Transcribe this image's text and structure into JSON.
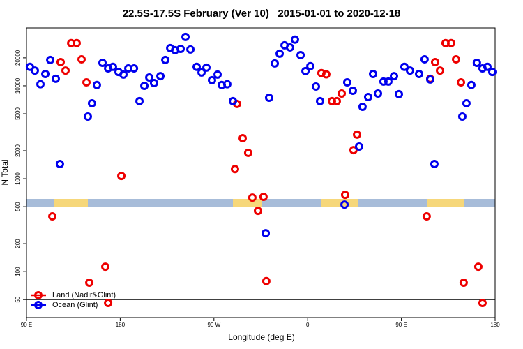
{
  "chart_data": {
    "type": "scatter",
    "title": "22.5S-17.5S February (Ver 10)   2015-01-01 to 2020-12-18",
    "x_label": "Longitude (deg E)",
    "y_label": "N Total",
    "log_y": true,
    "xlim": [
      90,
      540
    ],
    "ylim": [
      32,
      42000
    ],
    "xticks": [
      {
        "value": 90,
        "label": "90 E"
      },
      180,
      {
        "value": 270,
        "label": "90 W"
      },
      {
        "value": 360,
        "label": "0"
      },
      {
        "value": 450,
        "label": "90 E"
      },
      {
        "value": 540,
        "label": "180"
      }
    ],
    "yticks": [
      50,
      100,
      200,
      500,
      1000,
      2000,
      5000,
      10000,
      20000
    ],
    "reference_line": 50,
    "legend": "bottom-left",
    "series": [
      {
        "name": "Land (Nadir&Glint)",
        "color": "#ee0000",
        "x": [
          114.8,
          122.8,
          127.5,
          132.9,
          138.2,
          142.9,
          147.6,
          150.3,
          165.7,
          168.4,
          181.1,
          290.2,
          292.2,
          297.6,
          302.9,
          306.9,
          312.3,
          317.6,
          320.3,
          373.2,
          377.9,
          383.3,
          388.0,
          392.7,
          396.0,
          404.0,
          407.4,
          474.3,
          477.7,
          482.4,
          487.1,
          492.4,
          497.8,
          502.5,
          507.2,
          509.8,
          523.9,
          527.9
        ],
        "values": [
          393,
          18000,
          14600,
          28800,
          28800,
          19300,
          10900,
          76,
          113,
          46,
          1070,
          1270,
          6380,
          2730,
          1900,
          626,
          451,
          638,
          79,
          13700,
          13300,
          6840,
          6840,
          8260,
          671,
          2030,
          2980,
          393,
          11900,
          18000,
          14600,
          28800,
          28800,
          19300,
          10900,
          76,
          113,
          46
        ]
      },
      {
        "name": "Ocean (Glint)",
        "color": "#0000ee",
        "x": [
          93.3,
          98.0,
          103.4,
          108.1,
          112.8,
          118.1,
          122.1,
          148.9,
          152.9,
          157.6,
          163.0,
          168.4,
          173.0,
          178.4,
          183.1,
          187.8,
          193.2,
          198.5,
          203.2,
          207.9,
          212.5,
          218.6,
          223.3,
          228.0,
          232.7,
          238.0,
          242.7,
          247.4,
          253.4,
          258.1,
          262.8,
          268.1,
          273.5,
          277.5,
          282.8,
          288.2,
          319.7,
          323.0,
          328.4,
          333.1,
          337.8,
          343.1,
          347.8,
          353.2,
          357.9,
          362.6,
          367.9,
          371.9,
          395.4,
          398.0,
          403.4,
          409.4,
          412.7,
          418.1,
          422.8,
          427.5,
          432.8,
          437.5,
          442.9,
          447.6,
          452.9,
          458.3,
          467.0,
          472.3,
          477.7,
          481.7,
          508.5,
          512.5,
          517.2,
          522.5,
          527.9,
          532.6,
          537.3
        ],
        "values": [
          16000,
          14600,
          10400,
          13400,
          19000,
          11900,
          1440,
          4670,
          6490,
          10200,
          17700,
          15400,
          16000,
          14100,
          13200,
          15400,
          15400,
          6840,
          10000,
          12300,
          10700,
          12700,
          19000,
          25500,
          24200,
          25000,
          33600,
          24600,
          16000,
          13900,
          15700,
          11500,
          13200,
          10200,
          10400,
          6840,
          259,
          7450,
          17400,
          22200,
          27300,
          25900,
          31400,
          21400,
          14400,
          16300,
          9830,
          6840,
          527,
          10900,
          8860,
          2220,
          5950,
          7580,
          13400,
          8260,
          11100,
          11100,
          12700,
          8130,
          16000,
          14600,
          13400,
          19300,
          11700,
          1440,
          4670,
          6490,
          10200,
          17700,
          15400,
          16000,
          14100
        ]
      }
    ]
  }
}
